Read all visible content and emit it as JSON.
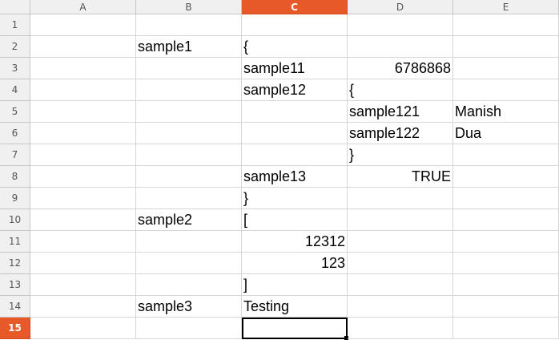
{
  "columns": [
    "A",
    "B",
    "C",
    "D",
    "E"
  ],
  "rows": [
    "1",
    "2",
    "3",
    "4",
    "5",
    "6",
    "7",
    "8",
    "9",
    "10",
    "11",
    "12",
    "13",
    "14",
    "15"
  ],
  "active_column": "C",
  "active_row": "15",
  "cells": {
    "B2": "sample1",
    "C2": "{",
    "C3": "sample11",
    "D3": "6786868",
    "C4": "sample12",
    "D4": "{",
    "D5": "sample121",
    "E5": "Manish",
    "D6": "sample122",
    "E6": "Dua",
    "D7": "}",
    "C8": "sample13",
    "D8": "TRUE",
    "C9": "}",
    "B10": "sample2",
    "C10": "[",
    "C11": "12312",
    "C12": "123",
    "C13": "]",
    "B14": "sample3",
    "C14": "Testing",
    "C15": ""
  },
  "numeric_cells": [
    "D3",
    "D8",
    "C11",
    "C12"
  ],
  "selected_cell": "C15",
  "colors": {
    "accent": "#e8592a",
    "grid": "#d6d6d6",
    "header_bg": "#f0f0f0"
  }
}
